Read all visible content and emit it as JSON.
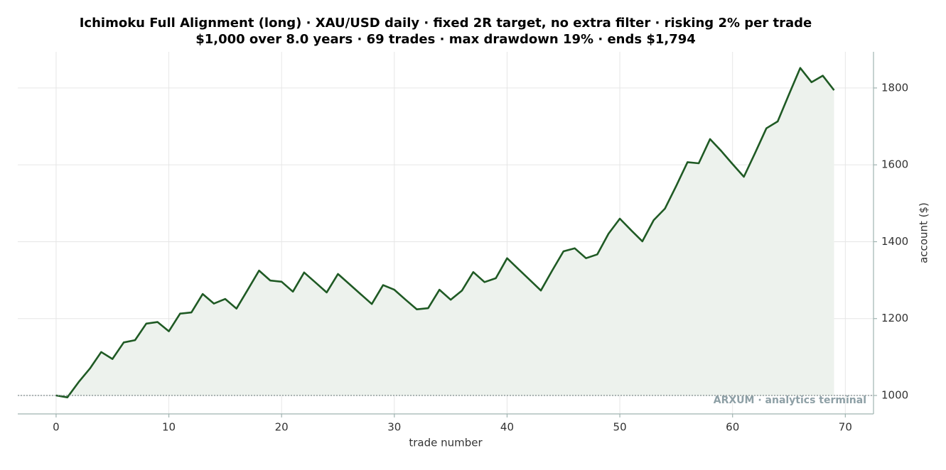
{
  "chart_data": {
    "type": "line",
    "title": "Ichimoku Full Alignment (long) · XAU/USD daily · fixed 2R target, no extra filter · risking 2% per trade",
    "subtitle": "$1,000 over 8.0 years · 69 trades · max drawdown 19% · ends $1,794",
    "x_label": "trade number",
    "y_label": "account ($)",
    "watermark": "ARXUM · analytics terminal",
    "x": [
      0,
      1,
      2,
      3,
      4,
      5,
      6,
      7,
      8,
      9,
      10,
      11,
      12,
      13,
      14,
      15,
      16,
      17,
      18,
      19,
      20,
      21,
      22,
      23,
      24,
      25,
      26,
      27,
      28,
      29,
      30,
      31,
      32,
      33,
      34,
      35,
      36,
      37,
      38,
      39,
      40,
      41,
      42,
      43,
      44,
      45,
      46,
      47,
      48,
      49,
      50,
      51,
      52,
      53,
      54,
      55,
      56,
      57,
      58,
      59,
      60,
      61,
      62,
      63,
      64,
      65,
      66,
      67,
      68,
      69
    ],
    "series": [
      {
        "name": "account",
        "color": "#1f5a24",
        "fill": "#edf2ed",
        "values": [
          1000,
          995,
          1035,
          1070,
          1113,
          1095,
          1138,
          1144,
          1187,
          1191,
          1167,
          1213,
          1216,
          1264,
          1239,
          1251,
          1226,
          1275,
          1325,
          1299,
          1296,
          1270,
          1320,
          1294,
          1268,
          1316,
          1290,
          1264,
          1238,
          1287,
          1275,
          1249,
          1224,
          1227,
          1275,
          1249,
          1273,
          1321,
          1295,
          1305,
          1357,
          1329,
          1301,
          1273,
          1325,
          1375,
          1383,
          1357,
          1367,
          1421,
          1460,
          1430,
          1401,
          1456,
          1486,
          1545,
          1607,
          1604,
          1667,
          1636,
          1602,
          1569,
          1631,
          1695,
          1713,
          1783,
          1852,
          1815,
          1832,
          1794
        ]
      }
    ],
    "baseline": 1000,
    "xlim": [
      -3.4,
      72.5
    ],
    "xticks": [
      0,
      10,
      20,
      30,
      40,
      50,
      60,
      70
    ],
    "ylim": [
      952,
      1894
    ],
    "yticks": [
      1000,
      1200,
      1400,
      1600,
      1800
    ],
    "grid": true,
    "y_axis_side": "right"
  }
}
